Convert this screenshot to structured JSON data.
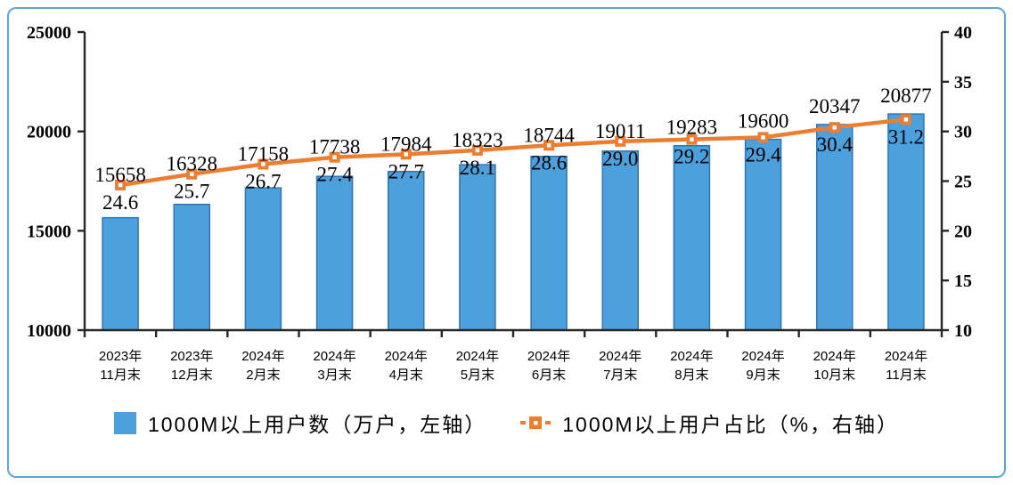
{
  "chart_data": {
    "type": "combo-bar-line",
    "categories": [
      [
        "2023年",
        "11月末"
      ],
      [
        "2023年",
        "12月末"
      ],
      [
        "2024年",
        "2月末"
      ],
      [
        "2024年",
        "3月末"
      ],
      [
        "2024年",
        "4月末"
      ],
      [
        "2024年",
        "5月末"
      ],
      [
        "2024年",
        "6月末"
      ],
      [
        "2024年",
        "7月末"
      ],
      [
        "2024年",
        "8月末"
      ],
      [
        "2024年",
        "9月末"
      ],
      [
        "2024年",
        "10月末"
      ],
      [
        "2024年",
        "11月末"
      ]
    ],
    "series": [
      {
        "name": "1000M以上用户数（万户，左轴）",
        "type": "bar",
        "axis": "left",
        "values": [
          15658,
          16328,
          17158,
          17738,
          17984,
          18323,
          18744,
          19011,
          19283,
          19600,
          20347,
          20877
        ]
      },
      {
        "name": "1000M以上用户占比（%，右轴）",
        "type": "line",
        "axis": "right",
        "values": [
          24.6,
          25.7,
          26.7,
          27.4,
          27.7,
          28.1,
          28.6,
          29.0,
          29.2,
          29.4,
          30.4,
          31.2
        ]
      }
    ],
    "left_axis": {
      "min": 10000,
      "max": 25000,
      "step": 5000
    },
    "right_axis": {
      "min": 10,
      "max": 40,
      "step": 5
    },
    "legend_position": "bottom",
    "grid": false
  },
  "colors": {
    "bar_fill": "#4ca0dc",
    "bar_stroke": "#2e75b6",
    "line": "#ed7d31",
    "marker_center": "#ffffff",
    "axis": "#262626",
    "text": "#000000",
    "frame": "#5ba7dc"
  }
}
